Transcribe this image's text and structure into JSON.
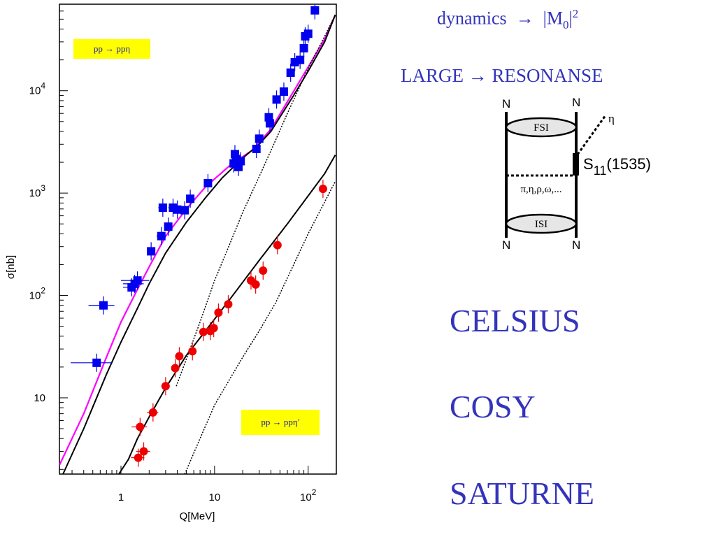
{
  "chart_data": {
    "type": "scatter",
    "xlabel": "Q[MeV]",
    "ylabel": "σ[nb]",
    "xscale": "log",
    "yscale": "log",
    "xlim": [
      0.22,
      200
    ],
    "ylim": [
      1.8,
      70000
    ],
    "x_ticks": [
      {
        "value": 1,
        "label": "1"
      },
      {
        "value": 10,
        "label": "10"
      },
      {
        "value": 100,
        "label": "10^2"
      }
    ],
    "y_ticks": [
      {
        "value": 10,
        "label": "10"
      },
      {
        "value": 100,
        "label": "10^2"
      },
      {
        "value": 1000,
        "label": "10^3"
      },
      {
        "value": 10000,
        "label": "10^4"
      }
    ],
    "grid": false,
    "legend_boxes": [
      {
        "text": "pp → ppη",
        "placement": "top-left",
        "color": "#ffff00"
      },
      {
        "text": "pp → ppη′",
        "placement": "bottom-right",
        "color": "#ffff00"
      }
    ],
    "series": [
      {
        "marker": "square",
        "color": "#0000ee",
        "points": [
          {
            "x": 0.55,
            "y": 22,
            "xerr": 0.26
          },
          {
            "x": 0.65,
            "y": 80,
            "xerr": 0.2
          },
          {
            "x": 1.3,
            "y": 120,
            "xerr": 0.25
          },
          {
            "x": 1.4,
            "y": 130,
            "xerr": 0.35
          },
          {
            "x": 1.5,
            "y": 140,
            "xerr": 0.5
          },
          {
            "x": 2.1,
            "y": 270,
            "xerr": 0.2
          },
          {
            "x": 2.7,
            "y": 380,
            "xerr": 0.3
          },
          {
            "x": 2.8,
            "y": 720,
            "xerr": 0.3
          },
          {
            "x": 3.2,
            "y": 470,
            "xerr": 0.3
          },
          {
            "x": 3.6,
            "y": 720,
            "xerr": 0.4
          },
          {
            "x": 4.0,
            "y": 690,
            "xerr": 0.4
          },
          {
            "x": 4.8,
            "y": 680,
            "xerr": 0.5
          },
          {
            "x": 5.5,
            "y": 880,
            "xerr": 0.5
          },
          {
            "x": 8.5,
            "y": 1250,
            "xerr": 0.8
          },
          {
            "x": 16,
            "y": 1950,
            "xerr": 1.6
          },
          {
            "x": 16.5,
            "y": 2400,
            "xerr": 1.6
          },
          {
            "x": 17,
            "y": 2150,
            "xerr": 1.5
          },
          {
            "x": 18,
            "y": 1800,
            "xerr": 1.6
          },
          {
            "x": 19,
            "y": 2050,
            "xerr": 1.6
          },
          {
            "x": 28,
            "y": 2700,
            "xerr": 2
          },
          {
            "x": 30,
            "y": 3400,
            "xerr": 2
          },
          {
            "x": 38,
            "y": 5500,
            "xerr": 3
          },
          {
            "x": 39,
            "y": 4800,
            "xerr": 3
          },
          {
            "x": 46,
            "y": 8200,
            "xerr": 3
          },
          {
            "x": 55,
            "y": 9800,
            "xerr": 4
          },
          {
            "x": 65,
            "y": 15000,
            "xerr": 4
          },
          {
            "x": 72,
            "y": 19000,
            "xerr": 4
          },
          {
            "x": 82,
            "y": 20000,
            "xerr": 5
          },
          {
            "x": 90,
            "y": 26000,
            "xerr": 5
          },
          {
            "x": 93,
            "y": 34000,
            "xerr": 5
          },
          {
            "x": 100,
            "y": 36000,
            "xerr": 5
          },
          {
            "x": 118,
            "y": 61000,
            "xerr": 0
          }
        ]
      },
      {
        "marker": "circle",
        "color": "#ee0000",
        "points": [
          {
            "x": 1.53,
            "y": 2.6,
            "xerr": 0.25
          },
          {
            "x": 1.6,
            "y": 5.2,
            "xerr": 0.3
          },
          {
            "x": 1.75,
            "y": 3.0,
            "xerr": 0.3
          },
          {
            "x": 2.2,
            "y": 7.2,
            "xerr": 0.3
          },
          {
            "x": 3.0,
            "y": 13,
            "xerr": 0.3
          },
          {
            "x": 3.8,
            "y": 19.5,
            "xerr": 0.3
          },
          {
            "x": 4.2,
            "y": 25.5,
            "xerr": 0.4
          },
          {
            "x": 5.8,
            "y": 28.5,
            "xerr": 0.5
          },
          {
            "x": 7.6,
            "y": 44,
            "xerr": 0.7
          },
          {
            "x": 9.0,
            "y": 45,
            "xerr": 0.8
          },
          {
            "x": 9.8,
            "y": 48,
            "xerr": 0.8
          },
          {
            "x": 11,
            "y": 68,
            "xerr": 0.9
          },
          {
            "x": 14,
            "y": 82,
            "xerr": 1
          },
          {
            "x": 24.5,
            "y": 140,
            "xerr": 2
          },
          {
            "x": 27.5,
            "y": 128,
            "xerr": 2
          },
          {
            "x": 33,
            "y": 175,
            "xerr": 2.5
          },
          {
            "x": 47,
            "y": 310,
            "xerr": 3
          },
          {
            "x": 144,
            "y": 1100,
            "xerr": 8
          }
        ]
      }
    ],
    "curves": [
      {
        "style": "solid",
        "color": "#ff00ff",
        "width": 2.2,
        "points": [
          [
            0.22,
            2.2
          ],
          [
            0.4,
            7
          ],
          [
            0.7,
            25
          ],
          [
            1,
            55
          ],
          [
            1.5,
            115
          ],
          [
            2,
            190
          ],
          [
            3,
            380
          ],
          [
            5,
            700
          ],
          [
            8,
            1150
          ],
          [
            15,
            1900
          ],
          [
            25,
            2600
          ],
          [
            40,
            4200
          ],
          [
            60,
            7800
          ],
          [
            100,
            17000
          ],
          [
            150,
            32000
          ],
          [
            195,
            55000
          ]
        ]
      },
      {
        "style": "solid",
        "color": "#000000",
        "width": 2,
        "points": [
          [
            0.24,
            1.8
          ],
          [
            0.4,
            5
          ],
          [
            0.7,
            17
          ],
          [
            1,
            35
          ],
          [
            1.5,
            75
          ],
          [
            2,
            130
          ],
          [
            3,
            260
          ],
          [
            5,
            520
          ],
          [
            8,
            900
          ],
          [
            12,
            1400
          ],
          [
            20,
            2200
          ],
          [
            30,
            3000
          ],
          [
            40,
            4000
          ],
          [
            70,
            9000
          ],
          [
            100,
            15500
          ],
          [
            150,
            30000
          ],
          [
            195,
            55000
          ]
        ]
      },
      {
        "style": "dotted",
        "color": "#000000",
        "width": 1.5,
        "points": [
          [
            3.9,
            13
          ],
          [
            5,
            24
          ],
          [
            7,
            55
          ],
          [
            10,
            140
          ],
          [
            15,
            340
          ],
          [
            20,
            650
          ],
          [
            30,
            1450
          ],
          [
            45,
            3300
          ],
          [
            60,
            6000
          ],
          [
            100,
            16500
          ],
          [
            150,
            34000
          ],
          [
            195,
            55000
          ]
        ]
      },
      {
        "style": "solid",
        "color": "#000000",
        "width": 2,
        "points": [
          [
            0.95,
            1.8
          ],
          [
            1.2,
            2.5
          ],
          [
            1.5,
            4
          ],
          [
            2,
            6.5
          ],
          [
            3,
            12.5
          ],
          [
            5,
            26
          ],
          [
            8,
            45
          ],
          [
            15,
            95
          ],
          [
            30,
            220
          ],
          [
            60,
            500
          ],
          [
            100,
            940
          ],
          [
            150,
            1550
          ],
          [
            195,
            2350
          ]
        ]
      },
      {
        "style": "dotted",
        "color": "#000000",
        "width": 1.5,
        "points": [
          [
            4.8,
            1.8
          ],
          [
            7,
            4
          ],
          [
            10,
            8.5
          ],
          [
            15,
            16
          ],
          [
            20,
            25
          ],
          [
            30,
            45
          ],
          [
            45,
            85
          ],
          [
            70,
            200
          ],
          [
            100,
            400
          ],
          [
            150,
            820
          ],
          [
            195,
            1300
          ]
        ]
      }
    ]
  },
  "texts": {
    "dynamics_lhs": "dynamics",
    "dynamics_arrow": "→",
    "dynamics_rhs_open": "|M",
    "dynamics_rhs_sub": "0",
    "dynamics_rhs_close": "|",
    "dynamics_rhs_sup": "2",
    "large_resonanse": "LARGE → RESONANSE",
    "celsius": "CELSIUS",
    "cosy": "COSY",
    "saturne": "SATURNE"
  },
  "diagram": {
    "n_top_left": "N",
    "n_top_right": "N",
    "n_bottom_left": "N",
    "n_bottom_right": "N",
    "eta": "η",
    "fsi": "FSI",
    "isi": "ISI",
    "s11_letter": "S",
    "s11_sub": "11",
    "s11_mass": "(1535)",
    "mesons": "π,η,ρ,ω,..."
  }
}
